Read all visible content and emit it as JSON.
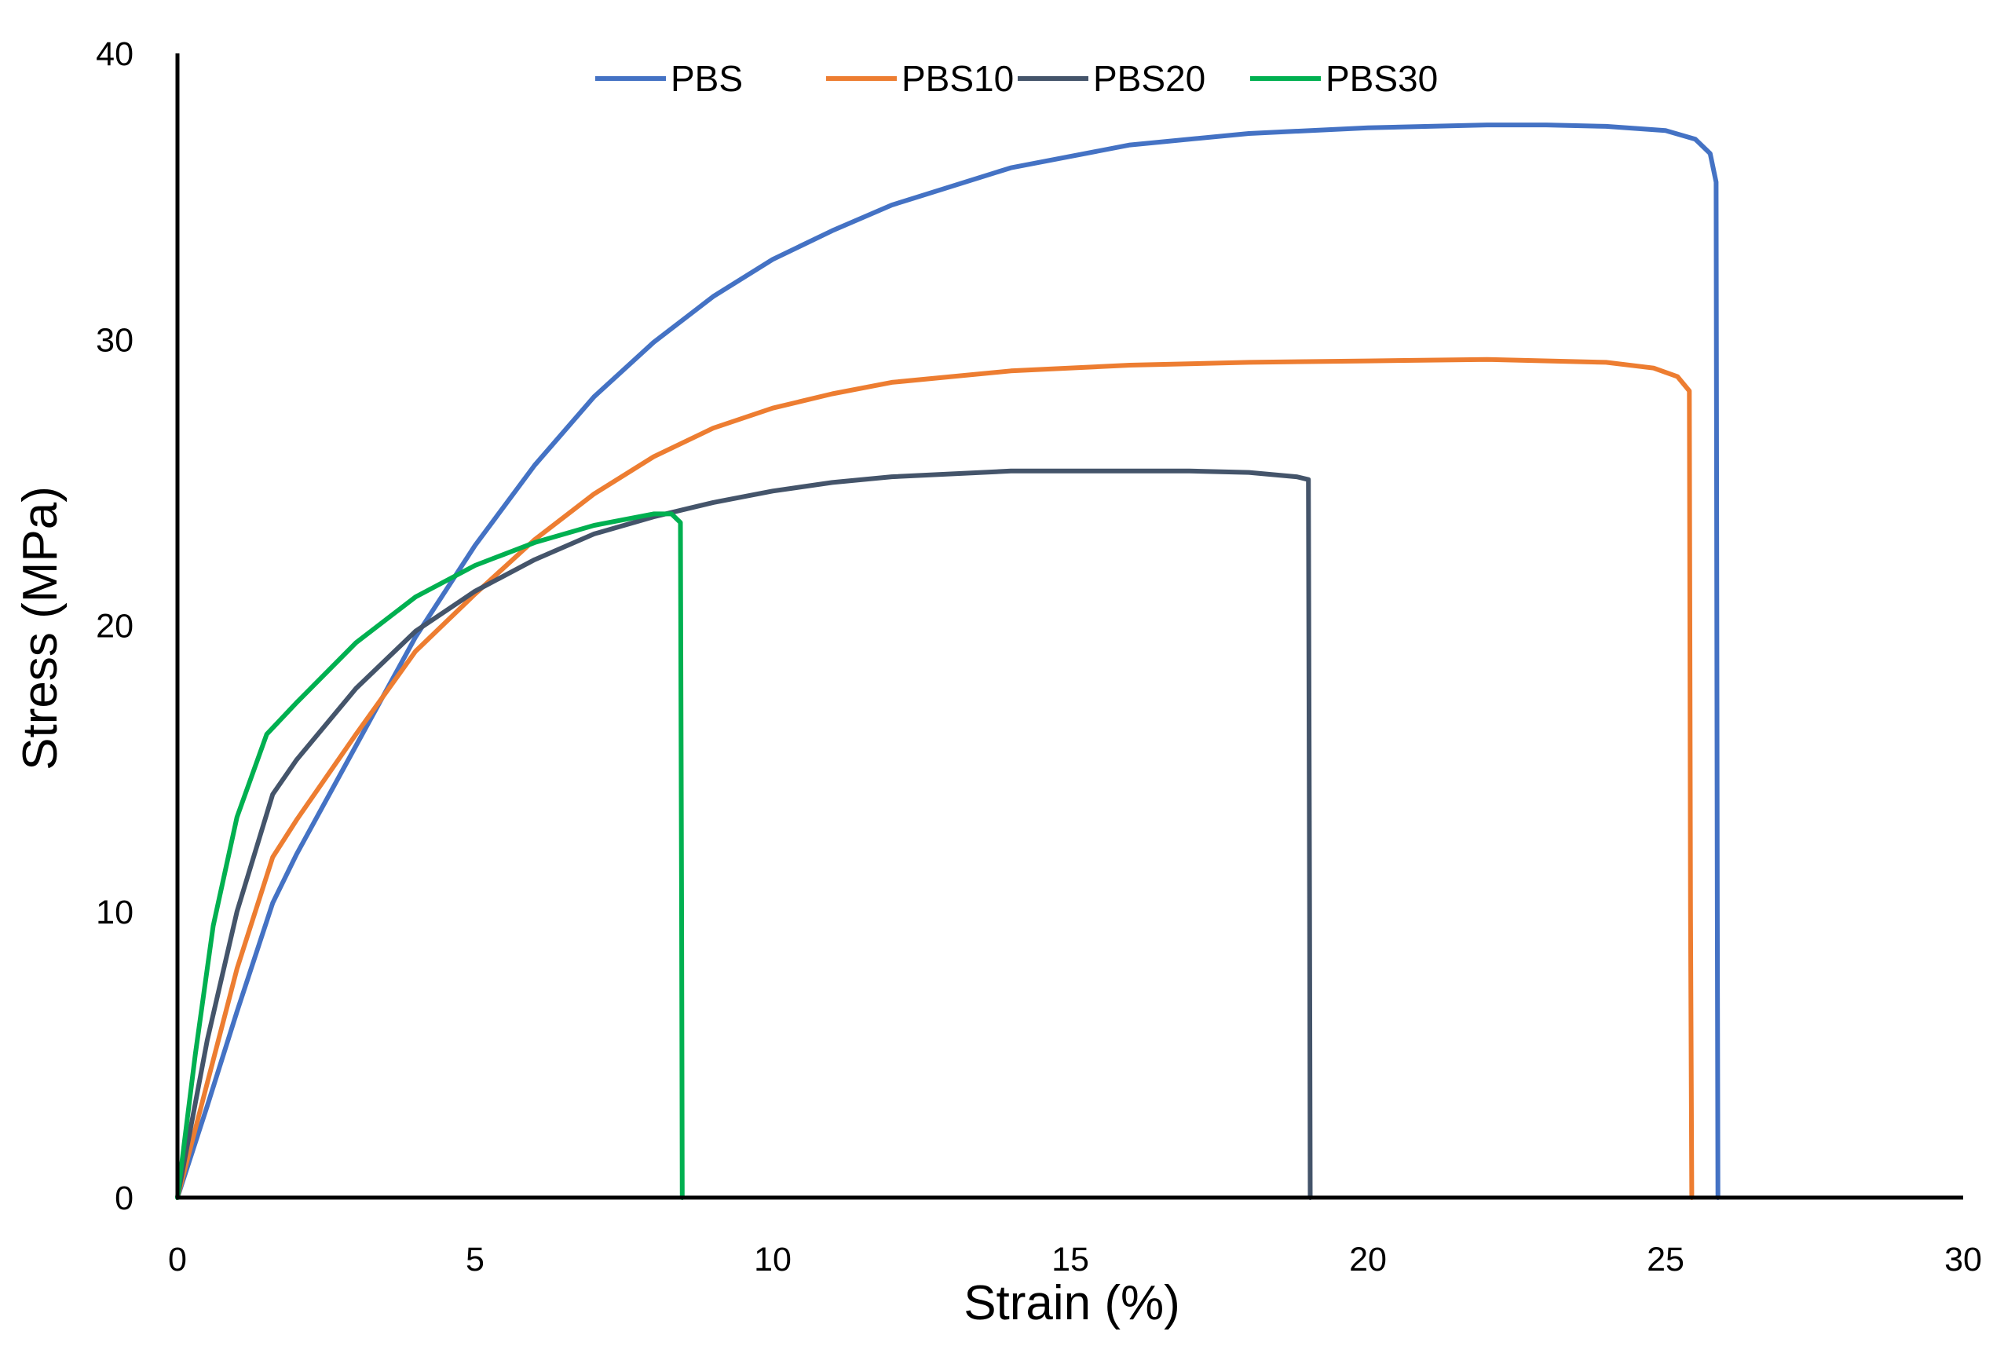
{
  "chart_data": {
    "type": "line",
    "title": "",
    "xlabel": "Strain (%)",
    "ylabel": "Stress (MPa)",
    "xlim": [
      0,
      30
    ],
    "ylim": [
      0,
      40
    ],
    "x_ticks": [
      "0",
      "5",
      "10",
      "15",
      "20",
      "25",
      "30"
    ],
    "y_ticks": [
      "0",
      "10",
      "20",
      "30",
      "40"
    ],
    "grid": false,
    "legend_position": "top",
    "series": [
      {
        "name": "PBS",
        "color": "#4472C4",
        "points": [
          [
            0,
            0
          ],
          [
            0.5,
            3.2
          ],
          [
            1,
            6.5
          ],
          [
            1.6,
            10.3
          ],
          [
            2,
            12
          ],
          [
            3,
            15.8
          ],
          [
            4,
            19.6
          ],
          [
            5,
            22.8
          ],
          [
            6,
            25.6
          ],
          [
            7,
            28
          ],
          [
            8,
            29.9
          ],
          [
            9,
            31.5
          ],
          [
            10,
            32.8
          ],
          [
            11,
            33.8
          ],
          [
            12,
            34.7
          ],
          [
            14,
            36
          ],
          [
            16,
            36.8
          ],
          [
            18,
            37.2
          ],
          [
            20,
            37.4
          ],
          [
            22,
            37.5
          ],
          [
            23,
            37.5
          ],
          [
            24,
            37.45
          ],
          [
            25,
            37.3
          ],
          [
            25.5,
            37
          ],
          [
            25.75,
            36.5
          ],
          [
            25.85,
            35.5
          ],
          [
            25.87,
            10
          ],
          [
            25.88,
            0
          ]
        ]
      },
      {
        "name": "PBS10",
        "color": "#ED7D31",
        "points": [
          [
            0,
            0
          ],
          [
            0.5,
            4
          ],
          [
            1,
            8
          ],
          [
            1.6,
            11.9
          ],
          [
            2,
            13.2
          ],
          [
            3,
            16.2
          ],
          [
            4,
            19.1
          ],
          [
            5,
            21.1
          ],
          [
            6,
            23
          ],
          [
            7,
            24.6
          ],
          [
            8,
            25.9
          ],
          [
            9,
            26.9
          ],
          [
            10,
            27.6
          ],
          [
            11,
            28.1
          ],
          [
            12,
            28.5
          ],
          [
            14,
            28.9
          ],
          [
            16,
            29.1
          ],
          [
            18,
            29.2
          ],
          [
            20,
            29.25
          ],
          [
            22,
            29.3
          ],
          [
            24,
            29.2
          ],
          [
            24.8,
            29
          ],
          [
            25.2,
            28.7
          ],
          [
            25.4,
            28.2
          ],
          [
            25.42,
            10
          ],
          [
            25.44,
            0
          ]
        ]
      },
      {
        "name": "PBS20",
        "color": "#44546A",
        "points": [
          [
            0,
            0
          ],
          [
            0.5,
            5.5
          ],
          [
            1,
            10
          ],
          [
            1.6,
            14.1
          ],
          [
            2,
            15.3
          ],
          [
            3,
            17.8
          ],
          [
            4,
            19.8
          ],
          [
            5,
            21.2
          ],
          [
            6,
            22.3
          ],
          [
            7,
            23.2
          ],
          [
            8,
            23.8
          ],
          [
            9,
            24.3
          ],
          [
            10,
            24.7
          ],
          [
            11,
            25
          ],
          [
            12,
            25.2
          ],
          [
            14,
            25.4
          ],
          [
            16,
            25.4
          ],
          [
            17,
            25.4
          ],
          [
            18,
            25.35
          ],
          [
            18.8,
            25.2
          ],
          [
            19,
            25.1
          ],
          [
            19.02,
            10
          ],
          [
            19.03,
            0
          ]
        ]
      },
      {
        "name": "PBS30",
        "color": "#00B050",
        "points": [
          [
            0,
            0
          ],
          [
            0.3,
            5
          ],
          [
            0.6,
            9.5
          ],
          [
            1,
            13.3
          ],
          [
            1.5,
            16.2
          ],
          [
            2,
            17.3
          ],
          [
            3,
            19.4
          ],
          [
            4,
            21
          ],
          [
            5,
            22.1
          ],
          [
            6,
            22.9
          ],
          [
            7,
            23.5
          ],
          [
            8,
            23.9
          ],
          [
            8.3,
            23.9
          ],
          [
            8.45,
            23.6
          ],
          [
            8.47,
            10
          ],
          [
            8.48,
            0
          ]
        ]
      }
    ]
  }
}
